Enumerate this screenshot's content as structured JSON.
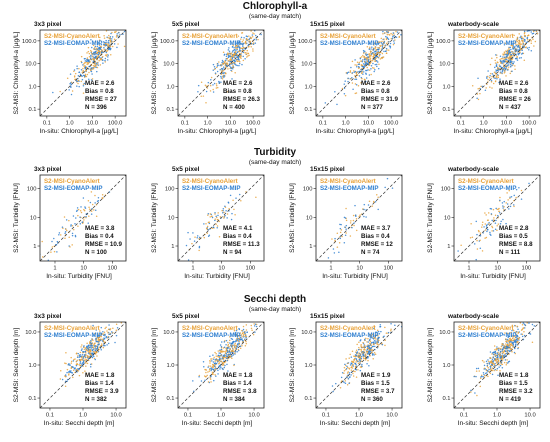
{
  "colors": {
    "cyanoalert": "#e8a23a",
    "eomap": "#2f7fd0",
    "axis": "#222222",
    "one_to_one": "#333333"
  },
  "legend": {
    "cyanoalert": "S2-MSI-CyanoAlert",
    "eomap": "S2-MSI-EOMAP-MIP"
  },
  "rows": [
    {
      "title": "Chlorophyll-a",
      "subtitle": "(same-day match)",
      "xlabel": "In-situ: Chlorophyll-a [µg/L]",
      "ylabel": "S2-MSI: Chlorophyll-a [µg/L]",
      "scale": "log",
      "domain": [
        0.05,
        300
      ],
      "ticks": [
        {
          "value": 0.1,
          "label": "0.1"
        },
        {
          "value": 1,
          "label": "1.0"
        },
        {
          "value": 10,
          "label": "10.0"
        },
        {
          "value": 100,
          "label": "100.0"
        }
      ],
      "cloud": {
        "center": 15,
        "spread": 0.55,
        "bias": 0.12
      },
      "panels": [
        {
          "title": "3x3 pixel",
          "mae": "MAE = 2.6",
          "bias": "Bias = 0.8",
          "rmse": "RMSE = 27",
          "n": "N = 396",
          "count": 396
        },
        {
          "title": "5x5 pixel",
          "mae": "MAE = 2.6",
          "bias": "Bias = 0.8",
          "rmse": "RMSE = 26.3",
          "n": "N = 400",
          "count": 400
        },
        {
          "title": "15x15 pixel",
          "mae": "MAE = 2.6",
          "bias": "Bias = 0.8",
          "rmse": "RMSE = 31.9",
          "n": "N = 377",
          "count": 377
        },
        {
          "title": "waterbody-scale",
          "mae": "MAE = 2.6",
          "bias": "Bias = 0.8",
          "rmse": "RMSE = 26",
          "n": "N = 437",
          "count": 437
        }
      ]
    },
    {
      "title": "Turbidity",
      "subtitle": "(same-day match)",
      "xlabel": "In-situ: Turbidity [FNU]",
      "ylabel": "S2-MSI: Turbidity [FNU]",
      "scale": "log",
      "domain": [
        0.3,
        300
      ],
      "ticks": [
        {
          "value": 1,
          "label": "1"
        },
        {
          "value": 10,
          "label": "10"
        },
        {
          "value": 100,
          "label": "100"
        }
      ],
      "cloud": {
        "center": 6,
        "spread": 0.5,
        "bias": 0.1
      },
      "panels": [
        {
          "title": "3x3 pixel",
          "mae": "MAE = 3.8",
          "bias": "Bias = 0.4",
          "rmse": "RMSE = 10.9",
          "n": "N = 100",
          "count": 100
        },
        {
          "title": "5x5 pixel",
          "mae": "MAE = 4.1",
          "bias": "Bias = 0.4",
          "rmse": "RMSE = 11.3",
          "n": "N = 94",
          "count": 94
        },
        {
          "title": "15x15 pixel",
          "mae": "MAE = 3.7",
          "bias": "Bias = 0.4",
          "rmse": "RMSE = 12",
          "n": "N = 74",
          "count": 74
        },
        {
          "title": "waterbody-scale",
          "mae": "MAE = 2.8",
          "bias": "Bias = 0.5",
          "rmse": "RMSE = 8.8",
          "n": "N = 111",
          "count": 111
        }
      ]
    },
    {
      "title": "Secchi depth",
      "subtitle": "(same-day match)",
      "xlabel": "In-situ: Secchi depth [m]",
      "ylabel": "S2-MSI: Secchi depth [m]",
      "scale": "log",
      "domain": [
        0.05,
        20
      ],
      "ticks": [
        {
          "value": 0.1,
          "label": "0.1"
        },
        {
          "value": 1,
          "label": "1.0"
        },
        {
          "value": 10,
          "label": "10.0"
        }
      ],
      "cloud": {
        "center": 1.5,
        "spread": 0.35,
        "bias": 0.2
      },
      "panels": [
        {
          "title": "3x3 pixel",
          "mae": "MAE = 1.8",
          "bias": "Bias = 1.4",
          "rmse": "RMSE = 3.9",
          "n": "N = 382",
          "count": 382
        },
        {
          "title": "5x5 pixel",
          "mae": "MAE = 1.8",
          "bias": "Bias = 1.4",
          "rmse": "RMSE = 3.8",
          "n": "N = 384",
          "count": 384
        },
        {
          "title": "15x15 pixel",
          "mae": "MAE = 1.9",
          "bias": "Bias = 1.5",
          "rmse": "RMSE = 3.7",
          "n": "N = 360",
          "count": 360
        },
        {
          "title": "waterbody-scale",
          "mae": "MAE = 1.8",
          "bias": "Bias = 1.5",
          "rmse": "RMSE = 3.2",
          "n": "N = 419",
          "count": 419
        }
      ]
    }
  ],
  "chart_data": [
    {
      "type": "scatter",
      "title": "Chlorophyll-a",
      "subtitle": "(same-day match)",
      "xlabel": "In-situ: Chlorophyll-a [µg/L]",
      "ylabel": "S2-MSI: Chlorophyll-a [µg/L]",
      "xscale": "log",
      "yscale": "log",
      "xlim": [
        0.05,
        300
      ],
      "ylim": [
        0.05,
        300
      ],
      "series": [
        {
          "name": "S2-MSI-CyanoAlert"
        },
        {
          "name": "S2-MSI-EOMAP-MIP"
        }
      ],
      "panels": [
        "3x3 pixel",
        "5x5 pixel",
        "15x15 pixel",
        "waterbody-scale"
      ]
    },
    {
      "type": "scatter",
      "title": "Turbidity",
      "subtitle": "(same-day match)",
      "xlabel": "In-situ: Turbidity [FNU]",
      "ylabel": "S2-MSI: Turbidity [FNU]",
      "xscale": "log",
      "yscale": "log",
      "xlim": [
        0.3,
        300
      ],
      "ylim": [
        0.3,
        300
      ],
      "series": [
        {
          "name": "S2-MSI-CyanoAlert"
        },
        {
          "name": "S2-MSI-EOMAP-MIP"
        }
      ],
      "panels": [
        "3x3 pixel",
        "5x5 pixel",
        "15x15 pixel",
        "waterbody-scale"
      ]
    },
    {
      "type": "scatter",
      "title": "Secchi depth",
      "subtitle": "(same-day match)",
      "xlabel": "In-situ: Secchi depth [m]",
      "ylabel": "S2-MSI: Secchi depth [m]",
      "xscale": "log",
      "yscale": "log",
      "xlim": [
        0.05,
        20
      ],
      "ylim": [
        0.05,
        20
      ],
      "series": [
        {
          "name": "S2-MSI-CyanoAlert"
        },
        {
          "name": "S2-MSI-EOMAP-MIP"
        }
      ],
      "panels": [
        "3x3 pixel",
        "5x5 pixel",
        "15x15 pixel",
        "waterbody-scale"
      ]
    }
  ]
}
